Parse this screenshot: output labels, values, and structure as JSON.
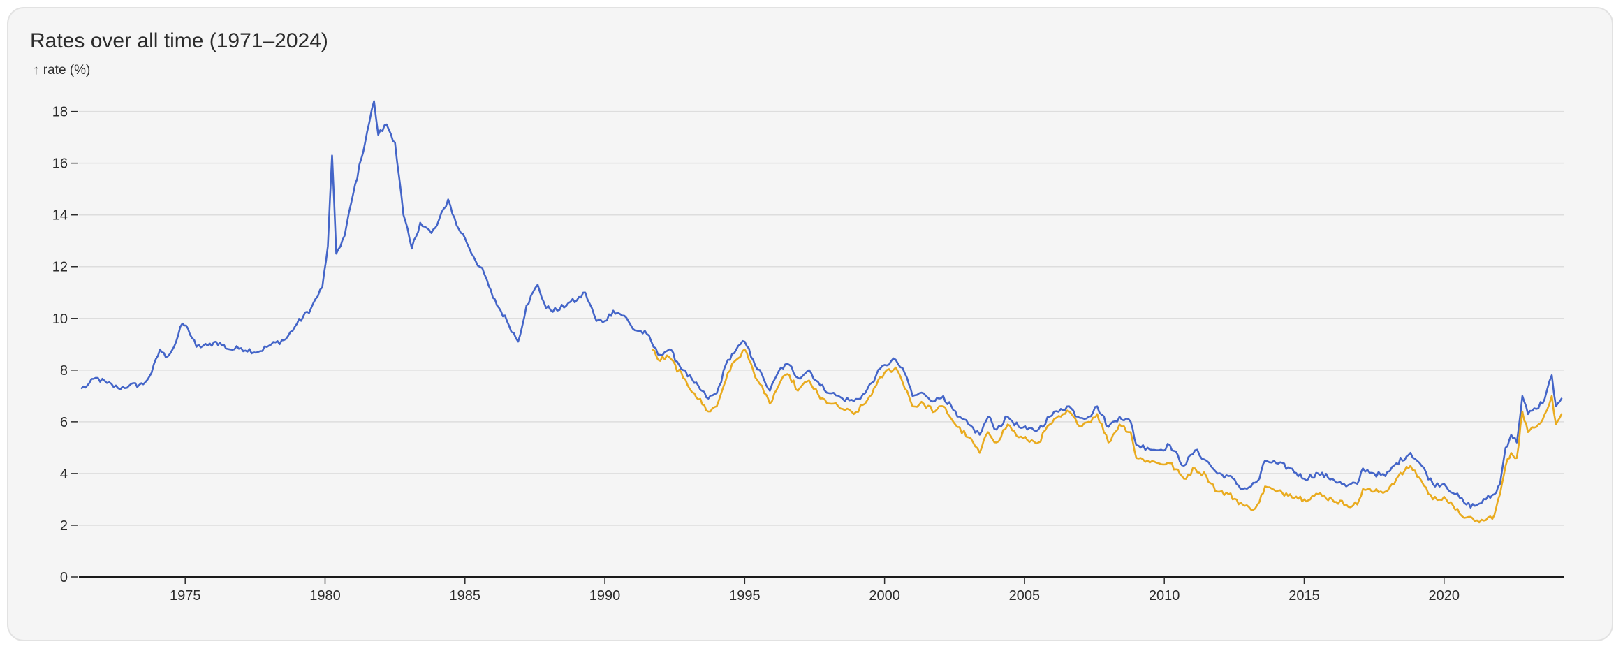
{
  "card": {
    "title": "Rates over all time (1971–2024)"
  },
  "chart_data": {
    "type": "line",
    "ylabel": "↑ rate (%)",
    "xlabel": "",
    "xlim": [
      1971.2,
      2024.3
    ],
    "ylim": [
      0,
      18.8
    ],
    "x_ticks": [
      1975,
      1980,
      1985,
      1990,
      1995,
      2000,
      2005,
      2010,
      2015,
      2020
    ],
    "y_ticks": [
      0,
      2,
      4,
      6,
      8,
      10,
      12,
      14,
      16,
      18
    ],
    "grid": "horizontal",
    "legend": "none",
    "series": [
      {
        "color": "#4465c8",
        "points": [
          [
            1971.3,
            7.3
          ],
          [
            1971.5,
            7.4
          ],
          [
            1971.8,
            7.7
          ],
          [
            1972.2,
            7.5
          ],
          [
            1972.6,
            7.3
          ],
          [
            1973.0,
            7.4
          ],
          [
            1973.5,
            7.45
          ],
          [
            1973.8,
            7.9
          ],
          [
            1974.1,
            8.8
          ],
          [
            1974.3,
            8.5
          ],
          [
            1974.6,
            8.9
          ],
          [
            1974.9,
            9.8
          ],
          [
            1975.1,
            9.6
          ],
          [
            1975.4,
            8.9
          ],
          [
            1975.8,
            8.95
          ],
          [
            1976.1,
            9.1
          ],
          [
            1976.6,
            8.8
          ],
          [
            1977.0,
            8.85
          ],
          [
            1977.6,
            8.7
          ],
          [
            1978.0,
            8.95
          ],
          [
            1978.6,
            9.2
          ],
          [
            1979.0,
            9.8
          ],
          [
            1979.5,
            10.4
          ],
          [
            1979.9,
            11.2
          ],
          [
            1980.1,
            12.8
          ],
          [
            1980.25,
            16.3
          ],
          [
            1980.4,
            12.5
          ],
          [
            1980.7,
            13.2
          ],
          [
            1981.0,
            14.8
          ],
          [
            1981.3,
            16.2
          ],
          [
            1981.5,
            17.2
          ],
          [
            1981.75,
            18.4
          ],
          [
            1981.9,
            17.1
          ],
          [
            1982.2,
            17.5
          ],
          [
            1982.5,
            16.8
          ],
          [
            1982.8,
            14.0
          ],
          [
            1983.1,
            12.7
          ],
          [
            1983.4,
            13.7
          ],
          [
            1983.8,
            13.3
          ],
          [
            1984.0,
            13.6
          ],
          [
            1984.4,
            14.6
          ],
          [
            1984.7,
            13.6
          ],
          [
            1985.0,
            13.1
          ],
          [
            1985.3,
            12.4
          ],
          [
            1985.7,
            11.7
          ],
          [
            1986.0,
            10.8
          ],
          [
            1986.5,
            9.9
          ],
          [
            1986.9,
            9.1
          ],
          [
            1987.2,
            10.5
          ],
          [
            1987.6,
            11.3
          ],
          [
            1987.9,
            10.4
          ],
          [
            1988.3,
            10.3
          ],
          [
            1988.7,
            10.6
          ],
          [
            1989.0,
            10.7
          ],
          [
            1989.3,
            11.0
          ],
          [
            1989.7,
            9.9
          ],
          [
            1990.0,
            9.9
          ],
          [
            1990.3,
            10.3
          ],
          [
            1990.7,
            10.1
          ],
          [
            1991.0,
            9.6
          ],
          [
            1991.5,
            9.4
          ],
          [
            1991.9,
            8.6
          ],
          [
            1992.3,
            8.8
          ],
          [
            1992.8,
            8.0
          ],
          [
            1993.2,
            7.5
          ],
          [
            1993.7,
            6.9
          ],
          [
            1994.0,
            7.1
          ],
          [
            1994.4,
            8.4
          ],
          [
            1994.7,
            8.8
          ],
          [
            1995.0,
            9.1
          ],
          [
            1995.3,
            8.4
          ],
          [
            1995.7,
            7.6
          ],
          [
            1995.9,
            7.2
          ],
          [
            1996.3,
            8.1
          ],
          [
            1996.6,
            8.2
          ],
          [
            1996.9,
            7.7
          ],
          [
            1997.3,
            8.0
          ],
          [
            1997.7,
            7.4
          ],
          [
            1998.1,
            7.1
          ],
          [
            1998.5,
            6.9
          ],
          [
            1998.9,
            6.8
          ],
          [
            1999.3,
            7.1
          ],
          [
            1999.7,
            7.8
          ],
          [
            2000.0,
            8.2
          ],
          [
            2000.4,
            8.4
          ],
          [
            2000.8,
            7.7
          ],
          [
            2001.0,
            7.0
          ],
          [
            2001.4,
            7.1
          ],
          [
            2001.8,
            6.8
          ],
          [
            2002.1,
            7.0
          ],
          [
            2002.6,
            6.2
          ],
          [
            2003.0,
            5.9
          ],
          [
            2003.4,
            5.5
          ],
          [
            2003.7,
            6.2
          ],
          [
            2004.0,
            5.7
          ],
          [
            2004.4,
            6.2
          ],
          [
            2004.8,
            5.8
          ],
          [
            2005.1,
            5.7
          ],
          [
            2005.5,
            5.7
          ],
          [
            2005.9,
            6.2
          ],
          [
            2006.3,
            6.5
          ],
          [
            2006.6,
            6.6
          ],
          [
            2006.9,
            6.2
          ],
          [
            2007.3,
            6.2
          ],
          [
            2007.6,
            6.6
          ],
          [
            2008.0,
            5.8
          ],
          [
            2008.4,
            6.2
          ],
          [
            2008.8,
            6.0
          ],
          [
            2009.0,
            5.1
          ],
          [
            2009.4,
            5.0
          ],
          [
            2009.8,
            4.9
          ],
          [
            2010.2,
            5.1
          ],
          [
            2010.7,
            4.3
          ],
          [
            2011.1,
            4.9
          ],
          [
            2011.5,
            4.5
          ],
          [
            2011.9,
            4.0
          ],
          [
            2012.3,
            3.9
          ],
          [
            2012.8,
            3.4
          ],
          [
            2013.1,
            3.5
          ],
          [
            2013.4,
            3.8
          ],
          [
            2013.6,
            4.5
          ],
          [
            2014.0,
            4.4
          ],
          [
            2014.5,
            4.2
          ],
          [
            2015.0,
            3.8
          ],
          [
            2015.5,
            4.0
          ],
          [
            2016.0,
            3.8
          ],
          [
            2016.5,
            3.5
          ],
          [
            2016.9,
            3.6
          ],
          [
            2017.1,
            4.2
          ],
          [
            2017.5,
            4.0
          ],
          [
            2017.9,
            3.9
          ],
          [
            2018.3,
            4.4
          ],
          [
            2018.8,
            4.8
          ],
          [
            2019.2,
            4.3
          ],
          [
            2019.6,
            3.6
          ],
          [
            2020.0,
            3.6
          ],
          [
            2020.4,
            3.2
          ],
          [
            2020.8,
            2.8
          ],
          [
            2021.1,
            2.75
          ],
          [
            2021.5,
            3.0
          ],
          [
            2021.8,
            3.2
          ],
          [
            2022.0,
            3.6
          ],
          [
            2022.2,
            5.0
          ],
          [
            2022.4,
            5.5
          ],
          [
            2022.6,
            5.2
          ],
          [
            2022.8,
            7.0
          ],
          [
            2023.0,
            6.3
          ],
          [
            2023.3,
            6.5
          ],
          [
            2023.6,
            6.9
          ],
          [
            2023.85,
            7.8
          ],
          [
            2024.0,
            6.6
          ],
          [
            2024.2,
            6.9
          ]
        ]
      },
      {
        "color": "#e9ab1f",
        "points": [
          [
            1991.7,
            8.8
          ],
          [
            1991.9,
            8.4
          ],
          [
            1992.3,
            8.5
          ],
          [
            1992.8,
            7.7
          ],
          [
            1993.2,
            7.1
          ],
          [
            1993.7,
            6.4
          ],
          [
            1994.0,
            6.6
          ],
          [
            1994.4,
            7.9
          ],
          [
            1994.7,
            8.4
          ],
          [
            1995.0,
            8.8
          ],
          [
            1995.3,
            8.0
          ],
          [
            1995.7,
            7.1
          ],
          [
            1995.9,
            6.7
          ],
          [
            1996.3,
            7.6
          ],
          [
            1996.6,
            7.8
          ],
          [
            1996.9,
            7.2
          ],
          [
            1997.3,
            7.6
          ],
          [
            1997.7,
            6.9
          ],
          [
            1998.1,
            6.7
          ],
          [
            1998.5,
            6.5
          ],
          [
            1998.9,
            6.3
          ],
          [
            1999.3,
            6.7
          ],
          [
            1999.7,
            7.4
          ],
          [
            2000.0,
            7.9
          ],
          [
            2000.4,
            8.1
          ],
          [
            2000.8,
            7.2
          ],
          [
            2001.0,
            6.6
          ],
          [
            2001.4,
            6.7
          ],
          [
            2001.8,
            6.4
          ],
          [
            2002.1,
            6.6
          ],
          [
            2002.6,
            5.8
          ],
          [
            2003.0,
            5.4
          ],
          [
            2003.4,
            4.8
          ],
          [
            2003.7,
            5.6
          ],
          [
            2004.0,
            5.2
          ],
          [
            2004.4,
            5.9
          ],
          [
            2004.8,
            5.4
          ],
          [
            2005.1,
            5.3
          ],
          [
            2005.5,
            5.2
          ],
          [
            2005.9,
            5.9
          ],
          [
            2006.3,
            6.2
          ],
          [
            2006.6,
            6.4
          ],
          [
            2006.9,
            5.9
          ],
          [
            2007.3,
            6.0
          ],
          [
            2007.6,
            6.3
          ],
          [
            2008.0,
            5.2
          ],
          [
            2008.4,
            5.9
          ],
          [
            2008.8,
            5.6
          ],
          [
            2009.0,
            4.6
          ],
          [
            2009.4,
            4.5
          ],
          [
            2009.8,
            4.4
          ],
          [
            2010.2,
            4.4
          ],
          [
            2010.7,
            3.8
          ],
          [
            2011.1,
            4.2
          ],
          [
            2011.5,
            3.9
          ],
          [
            2011.9,
            3.3
          ],
          [
            2012.3,
            3.2
          ],
          [
            2012.8,
            2.8
          ],
          [
            2013.1,
            2.6
          ],
          [
            2013.4,
            2.9
          ],
          [
            2013.6,
            3.5
          ],
          [
            2014.0,
            3.3
          ],
          [
            2014.5,
            3.2
          ],
          [
            2015.0,
            3.0
          ],
          [
            2015.5,
            3.2
          ],
          [
            2016.0,
            3.0
          ],
          [
            2016.5,
            2.8
          ],
          [
            2016.9,
            2.8
          ],
          [
            2017.1,
            3.4
          ],
          [
            2017.5,
            3.3
          ],
          [
            2017.9,
            3.3
          ],
          [
            2018.3,
            3.8
          ],
          [
            2018.8,
            4.3
          ],
          [
            2019.2,
            3.7
          ],
          [
            2019.6,
            3.0
          ],
          [
            2020.0,
            3.1
          ],
          [
            2020.4,
            2.6
          ],
          [
            2020.8,
            2.3
          ],
          [
            2021.1,
            2.15
          ],
          [
            2021.5,
            2.2
          ],
          [
            2021.8,
            2.4
          ],
          [
            2022.0,
            3.2
          ],
          [
            2022.2,
            4.3
          ],
          [
            2022.4,
            4.8
          ],
          [
            2022.6,
            4.6
          ],
          [
            2022.8,
            6.4
          ],
          [
            2023.0,
            5.6
          ],
          [
            2023.3,
            5.8
          ],
          [
            2023.6,
            6.3
          ],
          [
            2023.85,
            7.0
          ],
          [
            2024.0,
            5.9
          ],
          [
            2024.2,
            6.3
          ]
        ]
      }
    ]
  }
}
